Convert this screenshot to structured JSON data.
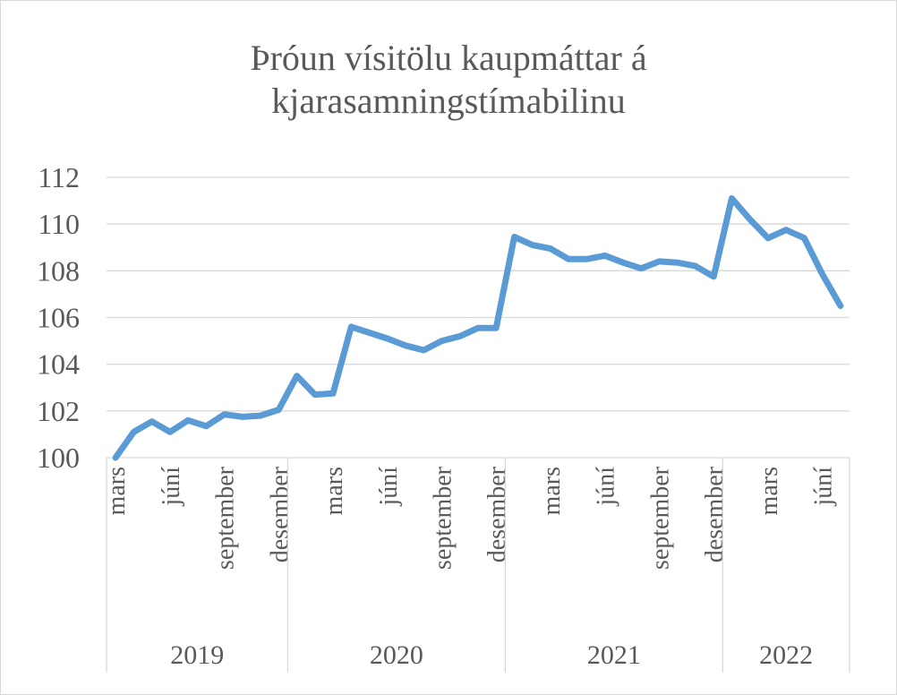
{
  "chart_data": {
    "type": "line",
    "title_lines": [
      "Þróun vísitölu kaupmáttar á",
      "kjarasamningstímabilinu"
    ],
    "xlabel": "",
    "ylabel": "",
    "ylim": [
      100,
      112
    ],
    "yticks": [
      100,
      102,
      104,
      106,
      108,
      110,
      112
    ],
    "grid": true,
    "legend": "none",
    "series_color": "#5B9BD5",
    "years": [
      {
        "label": "2019",
        "months": [
          "mars",
          "",
          "",
          "júní",
          "",
          "",
          "september",
          "",
          "",
          "desember"
        ]
      },
      {
        "label": "2020",
        "months": [
          "",
          "",
          "mars",
          "",
          "",
          "júní",
          "",
          "",
          "september",
          "",
          "",
          "desember"
        ]
      },
      {
        "label": "2021",
        "months": [
          "",
          "",
          "mars",
          "",
          "",
          "júní",
          "",
          "",
          "september",
          "",
          "",
          "desember"
        ]
      },
      {
        "label": "2022",
        "months": [
          "",
          "",
          "mars",
          "",
          "",
          "júní",
          ""
        ]
      }
    ],
    "series": [
      {
        "values": [
          100.0,
          101.1,
          101.55,
          101.1,
          101.6,
          101.35,
          101.85,
          101.75,
          101.8,
          102.05,
          103.5,
          102.7,
          102.75,
          105.6,
          105.35,
          105.1,
          104.8,
          104.6,
          105.0,
          105.2,
          105.55,
          105.55,
          109.45,
          109.1,
          108.95,
          108.5,
          108.5,
          108.65,
          108.35,
          108.1,
          108.4,
          108.35,
          108.2,
          107.75,
          111.1,
          110.2,
          109.4,
          109.75,
          109.4,
          107.85,
          106.5
        ]
      }
    ]
  }
}
